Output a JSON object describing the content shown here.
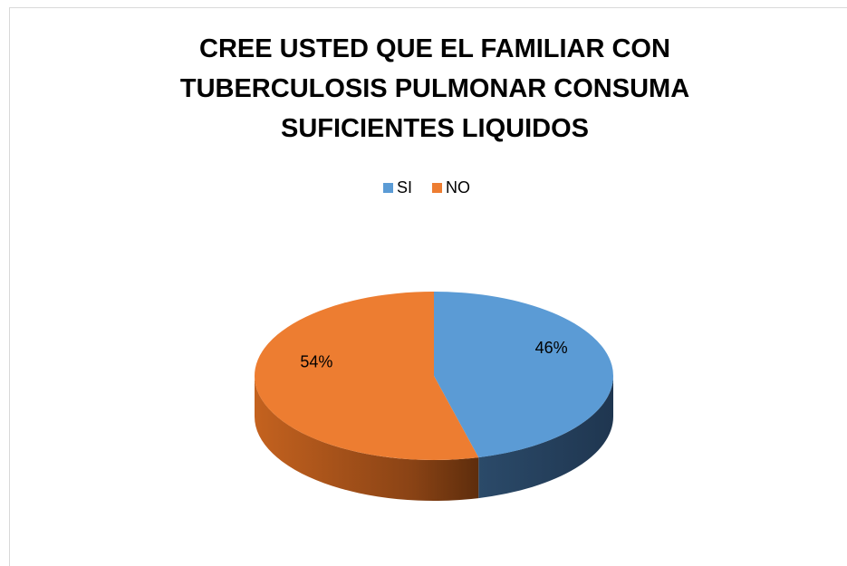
{
  "chart_data": {
    "type": "pie",
    "title": "CREE USTED QUE EL FAMILIAR CON TUBERCULOSIS PULMONAR CONSUMA SUFICIENTES LIQUIDOS",
    "categories": [
      "SI",
      "NO"
    ],
    "values": [
      46,
      54
    ],
    "value_labels": [
      "46%",
      "54%"
    ],
    "colors": [
      "#5b9bd5",
      "#ed7d31"
    ],
    "legend": "top"
  }
}
